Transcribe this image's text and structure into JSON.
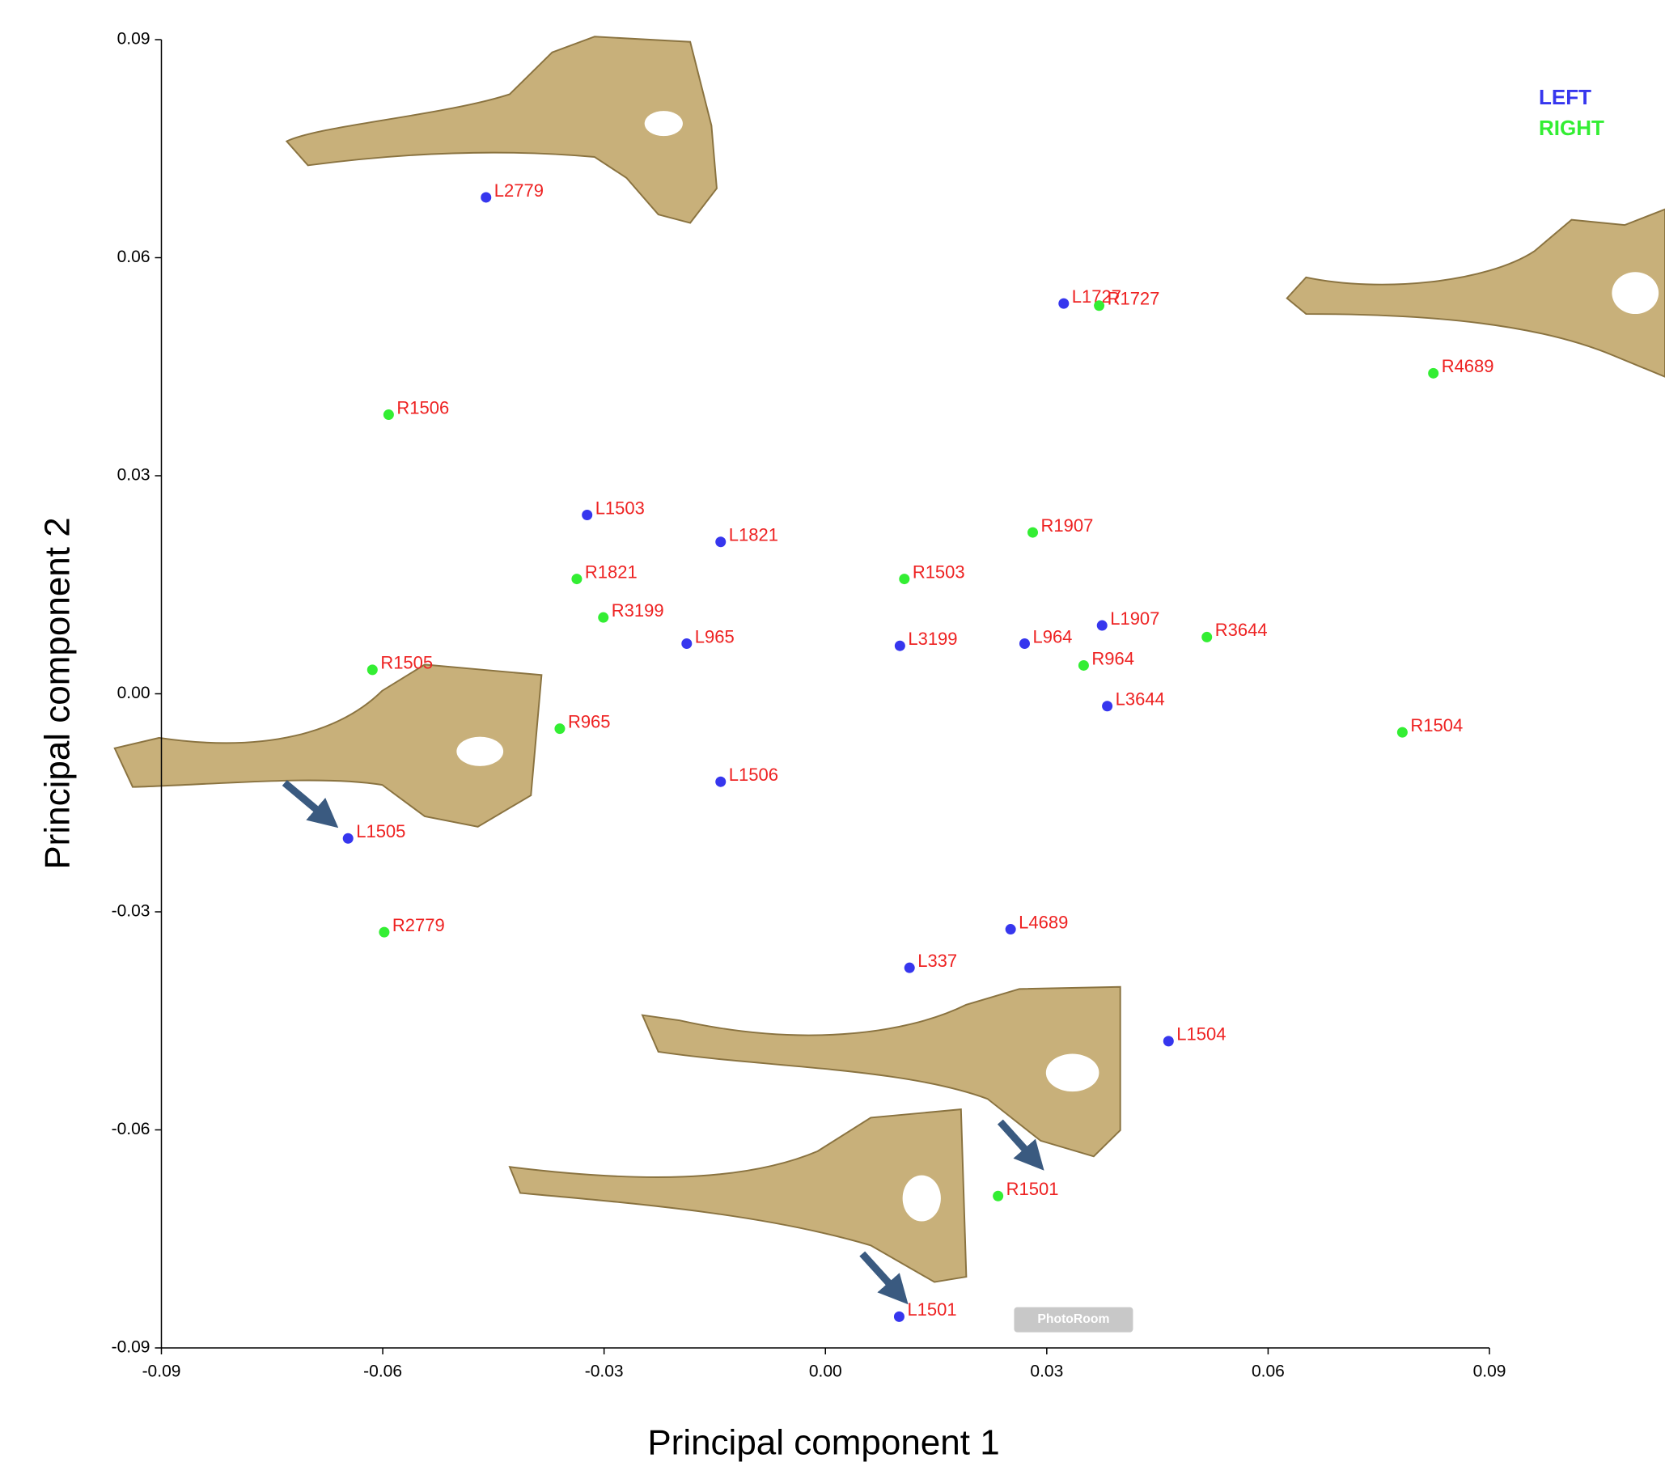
{
  "chart_data": {
    "type": "scatter",
    "xlabel": "Principal component 1",
    "ylabel": "Principal component 2",
    "xlim": [
      -0.09,
      0.09
    ],
    "ylim": [
      -0.09,
      0.09
    ],
    "xticks": [
      -0.09,
      -0.06,
      -0.03,
      {
        "value": 0,
        "label": "0.00"
      },
      0.03,
      0.06,
      0.09
    ],
    "yticks": [
      -0.09,
      -0.06,
      -0.03,
      {
        "value": 0,
        "label": "0.00"
      },
      0.03,
      0.06,
      0.09
    ],
    "legend": "upper right",
    "label_color": "#ee2222",
    "series": [
      {
        "name": "LEFT",
        "color": "#3636ee",
        "labels": [
          "L2779",
          "L1727",
          "L1503",
          "L1821",
          "L965",
          "L3199",
          "L964",
          "L1907",
          "L3644",
          "L1506",
          "L1505",
          "L4689",
          "L337",
          "L1504",
          "L1501"
        ],
        "x": [
          -0.046,
          0.0323,
          -0.0323,
          -0.0142,
          -0.0188,
          0.0101,
          0.027,
          0.0375,
          0.0382,
          -0.0142,
          -0.0647,
          0.0251,
          0.0114,
          0.0465,
          0.01
        ],
        "y": [
          0.0683,
          0.0537,
          0.0246,
          0.0209,
          0.0069,
          0.0066,
          0.0069,
          0.0094,
          -0.0017,
          -0.0121,
          -0.0199,
          -0.0324,
          -0.0377,
          -0.0478,
          -0.0857
        ]
      },
      {
        "name": "RIGHT",
        "color": "#33ee33",
        "labels": [
          "R1727",
          "R4689",
          "R1506",
          "R1907",
          "R1821",
          "R1503",
          "R3199",
          "R3644",
          "R964",
          "R1505",
          "R965",
          "R1504",
          "R2779",
          "R1501"
        ],
        "x": [
          0.0371,
          0.0824,
          -0.0592,
          0.0281,
          -0.0337,
          0.0107,
          -0.0301,
          0.0517,
          0.035,
          -0.0614,
          -0.036,
          0.0782,
          -0.0598,
          0.0234
        ],
        "y": [
          0.0534,
          0.0441,
          0.0384,
          0.0222,
          0.0158,
          0.0158,
          0.0105,
          0.0078,
          0.0039,
          0.0033,
          -0.0048,
          -0.0053,
          -0.0328,
          -0.0691
        ]
      }
    ]
  },
  "watermark": "PhotoRoom"
}
